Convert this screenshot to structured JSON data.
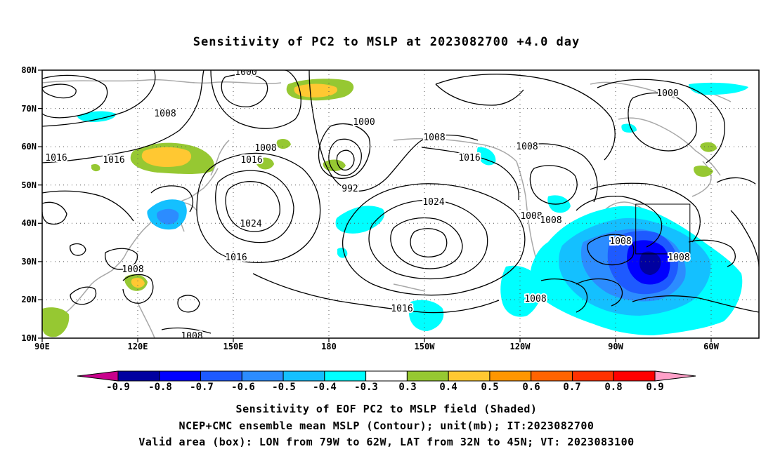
{
  "title": "Sensitivity of PC2 to MSLP at 2023082700 +4.0 day",
  "map": {
    "lat_labels": [
      "80N",
      "70N",
      "60N",
      "50N",
      "40N",
      "30N",
      "20N",
      "10N"
    ],
    "lon_labels": [
      "90E",
      "120E",
      "150E",
      "180",
      "150W",
      "120W",
      "90W",
      "60W"
    ],
    "contour_labels": [
      "1000",
      "1000",
      "1000",
      "1008",
      "1008",
      "1008",
      "1008",
      "1016",
      "1016",
      "1016",
      "1016",
      "992",
      "1024",
      "1024",
      "1016",
      "1008",
      "1008",
      "1008",
      "1008",
      "1008",
      "1008",
      "1016",
      "1008"
    ],
    "valid_box": {
      "lon_min": -79,
      "lon_max": -62,
      "lat_min": 32,
      "lat_max": 45
    }
  },
  "colorbar": {
    "labels": [
      "-0.9",
      "-0.8",
      "-0.7",
      "-0.6",
      "-0.5",
      "-0.4",
      "-0.3",
      "0.3",
      "0.4",
      "0.5",
      "0.6",
      "0.7",
      "0.8",
      "0.9"
    ],
    "colors": [
      "#0000a0",
      "#0000ff",
      "#1e5aff",
      "#2c8cff",
      "#14c0ff",
      "#00ffff",
      "#ffffff",
      "#96c832",
      "#ffc832",
      "#ff9600",
      "#ff6400",
      "#ff3200",
      "#ff0000"
    ],
    "left_arrow_color": "#c8008c",
    "right_arrow_color": "#ffa0c8"
  },
  "captions": [
    "Sensitivity of EOF PC2 to MSLP field (Shaded)",
    "NCEP+CMC ensemble mean MSLP (Contour); unit(mb); IT:2023082700",
    "Valid area (box): LON from 79W to 62W, LAT from 32N to 45N; VT: 2023083100"
  ]
}
